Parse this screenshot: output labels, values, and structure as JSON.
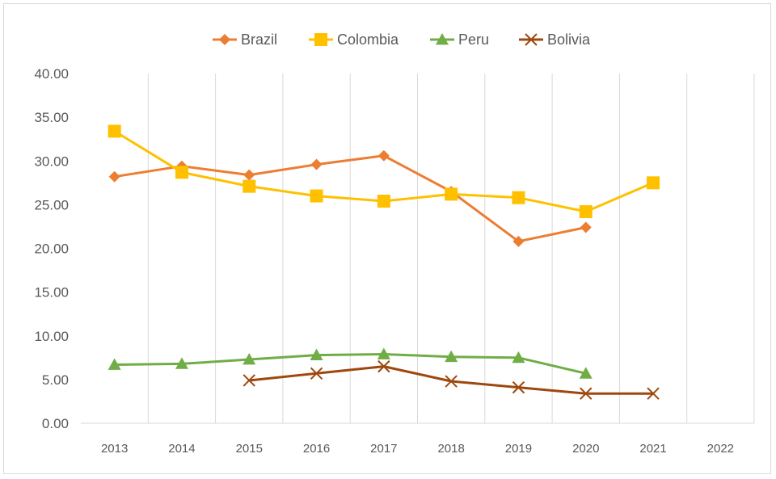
{
  "chart_data": {
    "type": "line",
    "title": "",
    "xlabel": "",
    "ylabel": "",
    "categories": [
      "2013",
      "2014",
      "2015",
      "2016",
      "2017",
      "2018",
      "2019",
      "2020",
      "2021",
      "2022"
    ],
    "y_tick_labels": [
      "0.00",
      "5.00",
      "10.00",
      "15.00",
      "20.00",
      "25.00",
      "30.00",
      "35.00",
      "40.00"
    ],
    "ylim": [
      0,
      40
    ],
    "grid": "vertical",
    "legend_position": "top",
    "series": [
      {
        "name": "Brazil",
        "marker": "diamond",
        "color": "#ED7D31",
        "values": [
          28.2,
          29.4,
          28.4,
          29.6,
          30.6,
          26.5,
          20.8,
          22.4,
          null,
          null
        ]
      },
      {
        "name": "Colombia",
        "marker": "square",
        "color": "#FFC000",
        "values": [
          33.4,
          28.7,
          27.1,
          26.0,
          25.4,
          26.2,
          25.8,
          24.2,
          27.5,
          null
        ]
      },
      {
        "name": "Peru",
        "marker": "triangle",
        "color": "#70AD47",
        "values": [
          6.7,
          6.8,
          7.3,
          7.8,
          7.9,
          7.6,
          7.5,
          5.7,
          null,
          null
        ]
      },
      {
        "name": "Bolivia",
        "marker": "x",
        "color": "#9E480E",
        "values": [
          null,
          null,
          4.9,
          5.7,
          6.5,
          4.8,
          4.1,
          3.4,
          3.4,
          null
        ]
      }
    ]
  }
}
